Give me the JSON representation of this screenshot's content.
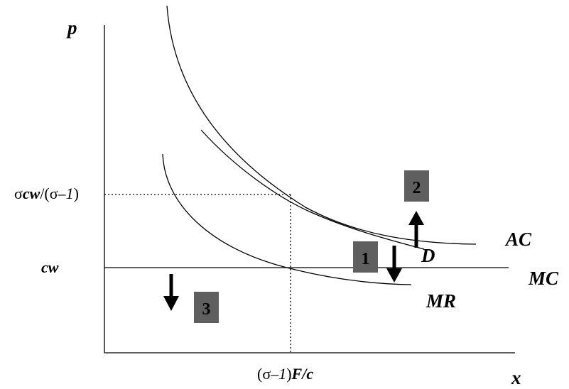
{
  "axes": {
    "y_label": "p",
    "x_label": "x"
  },
  "ticks": {
    "price_high": {
      "sigma": "σ",
      "cw": "cw",
      "slash": "/(σ",
      "minus": "–",
      "one": "1",
      "close": ")"
    },
    "price_low": "cw",
    "quantity": {
      "open": "(σ",
      "minus": "–",
      "one": "1",
      "close": ")",
      "F": "F",
      "slash": "/",
      "c": "c"
    }
  },
  "curves": {
    "ac": "AC",
    "demand": "D",
    "mc": "MC",
    "mr": "MR"
  },
  "markers": [
    {
      "id": "1",
      "label": "1",
      "arrow": "down"
    },
    {
      "id": "2",
      "label": "2",
      "arrow": "up"
    },
    {
      "id": "3",
      "label": "3",
      "arrow": "down"
    }
  ],
  "colors": {
    "line": "#000000",
    "box_fill": "#5f5f5f",
    "box_text": "#000000"
  }
}
